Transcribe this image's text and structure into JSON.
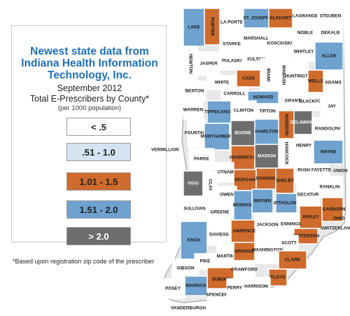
{
  "legend": {
    "title_lines": [
      "Newest state data from",
      "Indiana Health Information",
      "Technology, Inc."
    ],
    "date": "September 2012",
    "subtitle": "Total E-Prescribers by County*",
    "note": "(per 1000 population)",
    "categories": [
      {
        "label": "< .5",
        "color": "#ffffff",
        "text_color": "#222222"
      },
      {
        "label": ".51 - 1.0",
        "color": "#d4e4f3",
        "text_color": "#222222"
      },
      {
        "label": "1.01 - 1.5",
        "color": "#cf6b2c",
        "text_color": "#222222"
      },
      {
        "label": "1.51 - 2.0",
        "color": "#6fa2cf",
        "text_color": "#222222"
      },
      {
        "label": "> 2.0",
        "color": "#6e6e6e",
        "text_color": "#ffffff"
      }
    ]
  },
  "footnote": "*Based upon registration zip code of the prescriber",
  "outside_labels": [
    "VERMILLION",
    "UNION",
    "OHIO",
    "SWITZERLAND",
    "VANDERBURGH"
  ],
  "counties": [
    {
      "name": "PORTER",
      "category": 2
    },
    {
      "name": "LA PORTE",
      "category": 0
    },
    {
      "name": "ST. JOSEPH",
      "category": 3
    },
    {
      "name": "ELKHART",
      "category": 2
    },
    {
      "name": "LAGRANGE",
      "category": 0
    },
    {
      "name": "STEUBEN",
      "category": 0
    },
    {
      "name": "LAKE",
      "category": 3
    },
    {
      "name": "STARKE",
      "category": 0
    },
    {
      "name": "MARSHALL",
      "category": 0
    },
    {
      "name": "KOSCIUSKO",
      "category": 0
    },
    {
      "name": "NOBLE",
      "category": 0
    },
    {
      "name": "DEKALB",
      "category": 0
    },
    {
      "name": "NEWTON",
      "category": 0
    },
    {
      "name": "JASPER",
      "category": 0
    },
    {
      "name": "PULASKI",
      "category": 0
    },
    {
      "name": "FULTON",
      "category": 0
    },
    {
      "name": "WHITLEY",
      "category": 0
    },
    {
      "name": "ALLEN",
      "category": 3
    },
    {
      "name": "WHITE",
      "category": 0
    },
    {
      "name": "CASS",
      "category": 2
    },
    {
      "name": "MIAMI",
      "category": 0
    },
    {
      "name": "WABASH",
      "category": 0
    },
    {
      "name": "HUNTINGTON",
      "category": 0
    },
    {
      "name": "WELLS",
      "category": 2
    },
    {
      "name": "ADAMS",
      "category": 0
    },
    {
      "name": "BENTON",
      "category": 0
    },
    {
      "name": "CARROLL",
      "category": 0
    },
    {
      "name": "HOWARD",
      "category": 3
    },
    {
      "name": "GRANT",
      "category": 0
    },
    {
      "name": "BLACKFORD",
      "category": 0
    },
    {
      "name": "JAY",
      "category": 0
    },
    {
      "name": "WARREN",
      "category": 0
    },
    {
      "name": "TIPPECANOE",
      "category": 3
    },
    {
      "name": "CLINTON",
      "category": 0
    },
    {
      "name": "TIPTON",
      "category": 0
    },
    {
      "name": "MADISON",
      "category": 2
    },
    {
      "name": "DELAWARE",
      "category": 4
    },
    {
      "name": "RANDOLPH",
      "category": 0
    },
    {
      "name": "FOUNTAIN",
      "category": 0
    },
    {
      "name": "MONTGOMERY",
      "category": 3
    },
    {
      "name": "BOONE",
      "category": 4
    },
    {
      "name": "HAMILTON",
      "category": 3
    },
    {
      "name": "HENRY",
      "category": 0
    },
    {
      "name": "WAYNE",
      "category": 3
    },
    {
      "name": "PARKE",
      "category": 0
    },
    {
      "name": "HENDRICKS",
      "category": 2
    },
    {
      "name": "MARION",
      "category": 4
    },
    {
      "name": "HANCOCK",
      "category": 0
    },
    {
      "name": "PUTNAM",
      "category": 0
    },
    {
      "name": "RUSH",
      "category": 0
    },
    {
      "name": "FAYETTE",
      "category": 0
    },
    {
      "name": "VIGO",
      "category": 4
    },
    {
      "name": "CLAY",
      "category": 0
    },
    {
      "name": "MORGAN",
      "category": 2
    },
    {
      "name": "JOHNSON",
      "category": 2
    },
    {
      "name": "SHELBY",
      "category": 2
    },
    {
      "name": "FRANKLIN",
      "category": 0
    },
    {
      "name": "OWEN",
      "category": 0
    },
    {
      "name": "BARTHOLOMEW",
      "category": 3
    },
    {
      "name": "DECATUR",
      "category": 0
    },
    {
      "name": "SULLIVAN",
      "category": 0
    },
    {
      "name": "GREENE",
      "category": 0
    },
    {
      "name": "MONROE",
      "category": 3
    },
    {
      "name": "BROWN",
      "category": 3
    },
    {
      "name": "DEARBORN",
      "category": 2
    },
    {
      "name": "RIPLEY",
      "category": 2
    },
    {
      "name": "JENNINGS",
      "category": 0
    },
    {
      "name": "JACKSON",
      "category": 0
    },
    {
      "name": "LAWRENCE",
      "category": 2
    },
    {
      "name": "KNOX",
      "category": 3
    },
    {
      "name": "DAVIESS",
      "category": 0
    },
    {
      "name": "MARTIN",
      "category": 0
    },
    {
      "name": "JEFFERSON",
      "category": 2
    },
    {
      "name": "SCOTT",
      "category": 0
    },
    {
      "name": "ORANGE",
      "category": 2
    },
    {
      "name": "WASHINGTON",
      "category": 0
    },
    {
      "name": "CLARK",
      "category": 2
    },
    {
      "name": "PIKE",
      "category": 0
    },
    {
      "name": "GIBSON",
      "category": 0
    },
    {
      "name": "DUBOIS",
      "category": 2
    },
    {
      "name": "CRAWFORD",
      "category": 0
    },
    {
      "name": "FLOYD",
      "category": 2
    },
    {
      "name": "HARRISON",
      "category": 0
    },
    {
      "name": "WARRICK",
      "category": 3
    },
    {
      "name": "POSEY",
      "category": 0
    },
    {
      "name": "SPENCER",
      "category": 0
    },
    {
      "name": "PERRY",
      "category": 0
    }
  ]
}
